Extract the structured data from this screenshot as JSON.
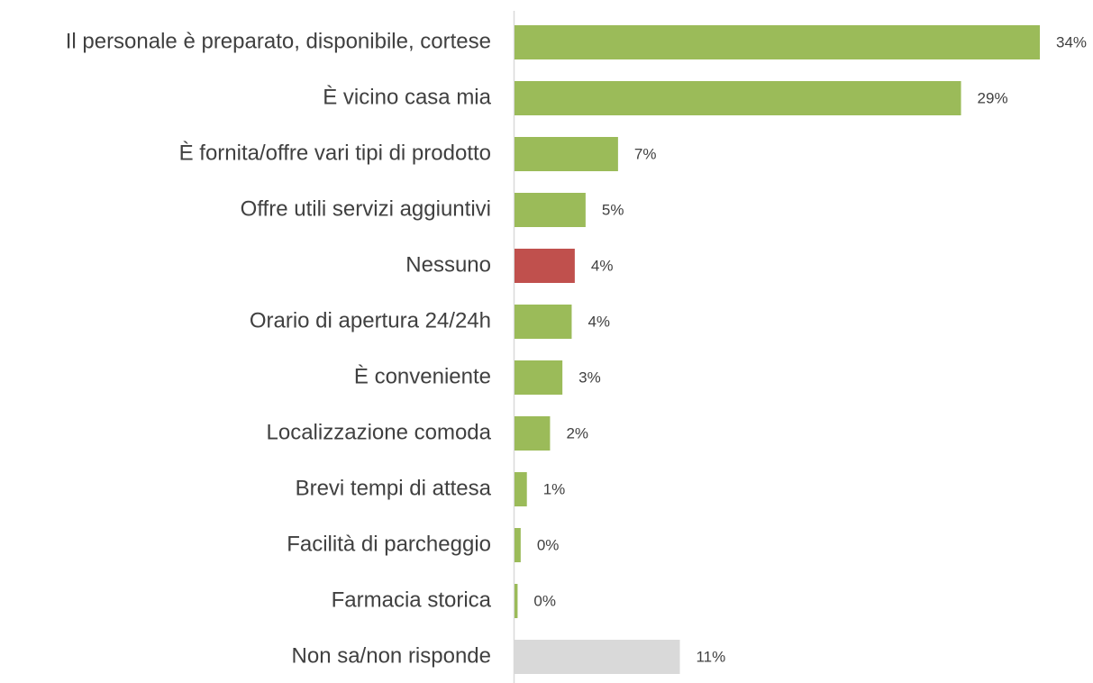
{
  "chart_data": {
    "type": "hbar",
    "categories": [
      "Il personale è preparato, disponibile, cortese",
      "È vicino casa mia",
      "È fornita/offre vari tipi di prodotto",
      "Offre utili servizi aggiuntivi",
      "Nessuno",
      "Orario di apertura 24/24h",
      "È conveniente",
      "Localizzazione comoda",
      "Brevi tempi di attesa",
      "Facilità di parcheggio",
      "Farmacia storica",
      "Non sa/non risponde"
    ],
    "values": [
      34,
      28.9,
      6.7,
      4.6,
      3.9,
      3.7,
      3.1,
      2.3,
      0.8,
      0.4,
      0.2,
      10.7
    ],
    "value_labels": [
      "34%",
      "29%",
      "7%",
      "5%",
      "4%",
      "4%",
      "3%",
      "2%",
      "1%",
      "0%",
      "0%",
      "11%"
    ],
    "colors": [
      "#9bbb59",
      "#9bbb59",
      "#9bbb59",
      "#9bbb59",
      "#c0504d",
      "#9bbb59",
      "#9bbb59",
      "#9bbb59",
      "#9bbb59",
      "#9bbb59",
      "#9bbb59",
      "#d9d9d9"
    ]
  }
}
